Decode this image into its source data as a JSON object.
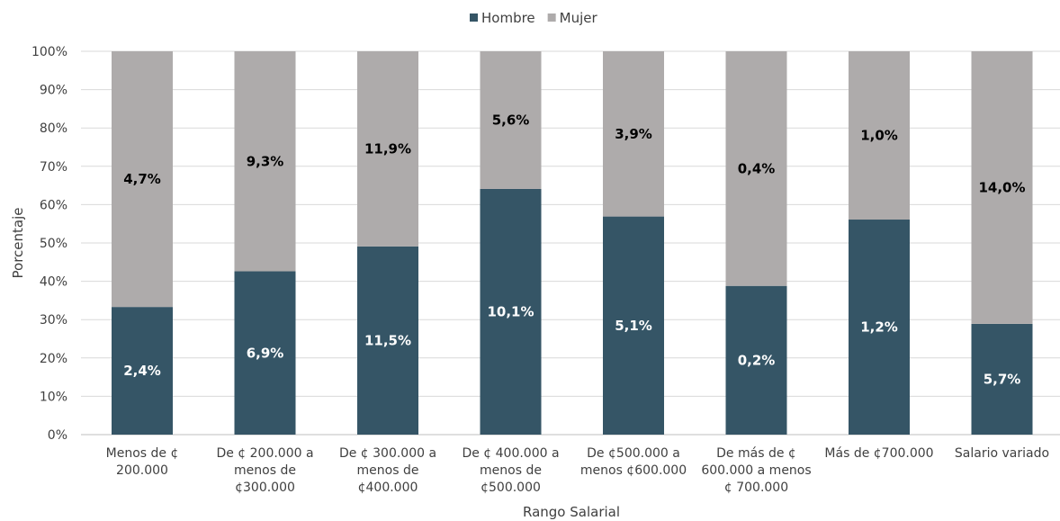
{
  "chart_data": {
    "type": "bar",
    "stacked": true,
    "normalized": true,
    "xlabel": "Rango Salarial",
    "ylabel": "Porcentaje",
    "ylim": [
      0,
      100
    ],
    "yticks": [
      "0%",
      "10%",
      "20%",
      "30%",
      "40%",
      "50%",
      "60%",
      "70%",
      "80%",
      "90%",
      "100%"
    ],
    "grid": true,
    "legend_position": "top-center",
    "categories": [
      [
        "Menos de ¢",
        "200.000"
      ],
      [
        "De ¢ 200.000 a",
        "menos de",
        "¢300.000"
      ],
      [
        "De ¢ 300.000 a",
        "menos de",
        "¢400.000"
      ],
      [
        "De ¢ 400.000 a",
        "menos de",
        "¢500.000"
      ],
      [
        "De ¢500.000 a",
        "menos ¢600.000"
      ],
      [
        "De más de ¢",
        "600.000 a menos",
        "¢ 700.000"
      ],
      [
        "Más de ¢700.000"
      ],
      [
        "Salario variado"
      ]
    ],
    "series": [
      {
        "name": "Hombre",
        "color": "#355566",
        "label_color": "#ffffff",
        "share_percent": [
          33.3,
          42.6,
          49.1,
          64.1,
          56.9,
          38.8,
          56.1,
          28.9
        ],
        "data_labels": [
          "2,4%",
          "6,9%",
          "11,5%",
          "10,1%",
          "5,1%",
          "0,2%",
          "1,2%",
          "5,7%"
        ]
      },
      {
        "name": "Mujer",
        "color": "#aeabab",
        "label_color": "#000000",
        "share_percent": [
          66.7,
          57.4,
          50.9,
          35.9,
          43.1,
          61.2,
          43.9,
          71.1
        ],
        "data_labels": [
          "4,7%",
          "9,3%",
          "11,9%",
          "5,6%",
          "3,9%",
          "0,4%",
          "1,0%",
          "14,0%"
        ]
      }
    ]
  }
}
